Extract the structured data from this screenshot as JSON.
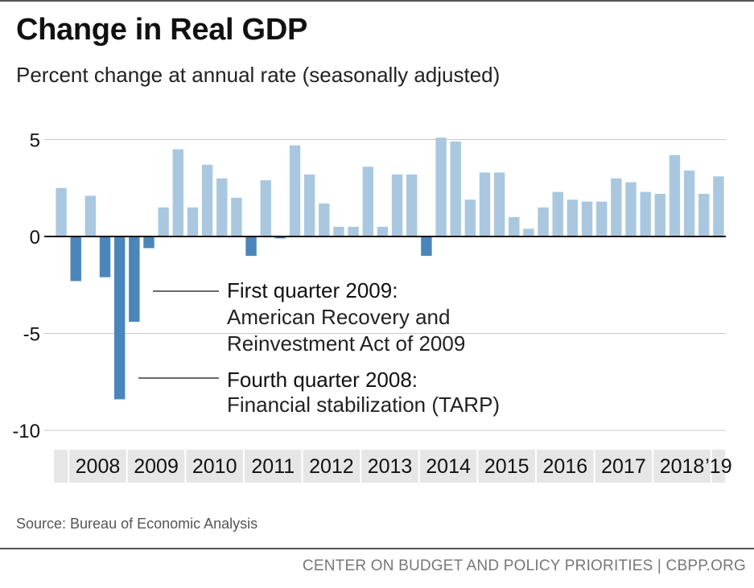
{
  "title": "Change in Real GDP",
  "subtitle": "Percent change at annual rate (seasonally adjusted)",
  "source": "Source: Bureau of Economic Analysis",
  "footer": "CENTER ON BUDGET AND POLICY PRIORITIES | CBPP.ORG",
  "colors": {
    "positive": "#a9c8e0",
    "negative": "#4a86bb",
    "grid": "#c8c8c8",
    "band": "#e6e6e6",
    "zero": "#111111"
  },
  "chart_data": {
    "type": "bar",
    "title": "Change in Real GDP",
    "ylabel": "Percent change at annual rate (seasonally adjusted)",
    "ylim": [
      -10,
      5
    ],
    "yticks": [
      5,
      0,
      -5,
      -10
    ],
    "ytick_labels": [
      "5",
      "0",
      "-5",
      "-10"
    ],
    "grid": true,
    "year_labels": [
      "2008",
      "2009",
      "2010",
      "2011",
      "2012",
      "2013",
      "2014",
      "2015",
      "2016",
      "2017",
      "2018",
      "’19"
    ],
    "categories": [
      "2007 Q4",
      "2008 Q1",
      "2008 Q2",
      "2008 Q3",
      "2008 Q4",
      "2009 Q1",
      "2009 Q2",
      "2009 Q3",
      "2009 Q4",
      "2010 Q1",
      "2010 Q2",
      "2010 Q3",
      "2010 Q4",
      "2011 Q1",
      "2011 Q2",
      "2011 Q3",
      "2011 Q4",
      "2012 Q1",
      "2012 Q2",
      "2012 Q3",
      "2012 Q4",
      "2013 Q1",
      "2013 Q2",
      "2013 Q3",
      "2013 Q4",
      "2014 Q1",
      "2014 Q2",
      "2014 Q3",
      "2014 Q4",
      "2015 Q1",
      "2015 Q2",
      "2015 Q3",
      "2015 Q4",
      "2016 Q1",
      "2016 Q2",
      "2016 Q3",
      "2016 Q4",
      "2017 Q1",
      "2017 Q2",
      "2017 Q3",
      "2017 Q4",
      "2018 Q1",
      "2018 Q2",
      "2018 Q3",
      "2018 Q4",
      "2019 Q1"
    ],
    "values": [
      2.5,
      -2.3,
      2.1,
      -2.1,
      -8.4,
      -4.4,
      -0.6,
      1.5,
      4.5,
      1.5,
      3.7,
      3.0,
      2.0,
      -1.0,
      2.9,
      -0.1,
      4.7,
      3.2,
      1.7,
      0.5,
      0.5,
      3.6,
      0.5,
      3.2,
      3.2,
      -1.0,
      5.1,
      4.9,
      1.9,
      3.3,
      3.3,
      1.0,
      0.4,
      1.5,
      2.3,
      1.9,
      1.8,
      1.8,
      3.0,
      2.8,
      2.3,
      2.2,
      4.2,
      3.4,
      2.2,
      3.1
    ],
    "annotations": [
      {
        "target": "2009 Q1",
        "heading": "First quarter 2009:",
        "lines": [
          "American Recovery and",
          "Reinvestment Act of 2009"
        ]
      },
      {
        "target": "2008 Q4",
        "heading": "Fourth quarter 2008:",
        "lines": [
          "Financial stabilization (TARP)"
        ]
      }
    ]
  }
}
